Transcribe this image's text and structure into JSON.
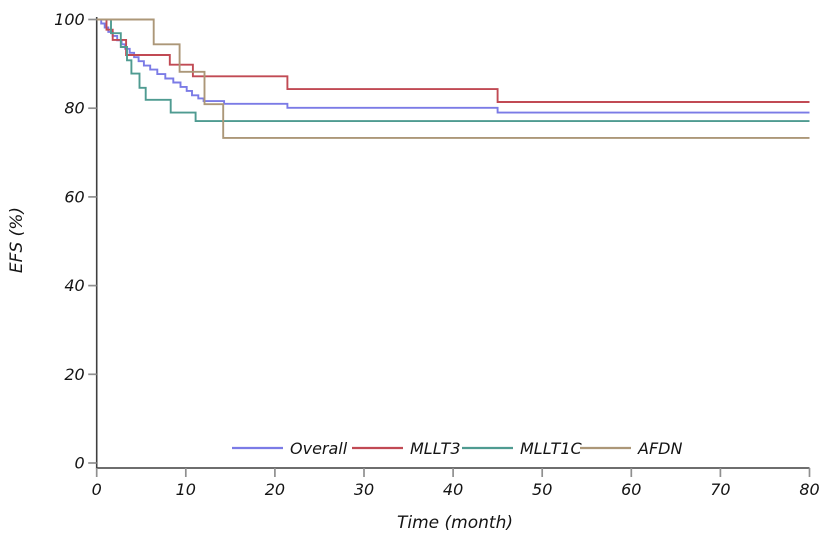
{
  "chart_data": {
    "type": "line",
    "subtype": "kaplan-meier-step",
    "title": "",
    "xlabel": "Time (month)",
    "ylabel": "EFS (%)",
    "xlim": [
      0,
      80
    ],
    "ylim": [
      0,
      100
    ],
    "xticks": [
      0,
      10,
      20,
      30,
      40,
      50,
      60,
      70,
      80
    ],
    "yticks": [
      0,
      20,
      40,
      60,
      80,
      100
    ],
    "grid": false,
    "legend_position": "inside-bottom-center",
    "axis_color": "#3f3f3f",
    "tick_color": "#8f8f8f",
    "text_color": "#141414",
    "background_color": "#ffffff",
    "series": [
      {
        "name": "Overall",
        "color": "#7b7be6",
        "points": [
          [
            0,
            100
          ],
          [
            0.5,
            99.1
          ],
          [
            0.9,
            98.2
          ],
          [
            1.3,
            97.2
          ],
          [
            1.8,
            96.3
          ],
          [
            2.3,
            95.3
          ],
          [
            2.8,
            94.4
          ],
          [
            3.2,
            93.4
          ],
          [
            3.7,
            92.5
          ],
          [
            4.2,
            91.5
          ],
          [
            4.7,
            90.6
          ],
          [
            5.3,
            89.6
          ],
          [
            6.0,
            88.7
          ],
          [
            6.8,
            87.7
          ],
          [
            7.7,
            86.7
          ],
          [
            8.6,
            85.8
          ],
          [
            9.4,
            84.8
          ],
          [
            10.1,
            83.9
          ],
          [
            10.7,
            82.9
          ],
          [
            11.4,
            82.2
          ],
          [
            12.0,
            81.6
          ],
          [
            14.3,
            81.0
          ],
          [
            21.4,
            80.1
          ],
          [
            45.0,
            79.0
          ]
        ]
      },
      {
        "name": "MLLT3",
        "color": "#c14a54",
        "points": [
          [
            0,
            100
          ],
          [
            1.1,
            97.7
          ],
          [
            1.8,
            95.4
          ],
          [
            3.3,
            92.0
          ],
          [
            8.2,
            89.8
          ],
          [
            10.8,
            87.2
          ],
          [
            21.4,
            84.3
          ],
          [
            45.0,
            81.4
          ]
        ]
      },
      {
        "name": "MLLT1C",
        "color": "#4f9b91",
        "points": [
          [
            0,
            100
          ],
          [
            1.6,
            96.9
          ],
          [
            2.7,
            93.8
          ],
          [
            3.4,
            90.8
          ],
          [
            3.9,
            87.8
          ],
          [
            4.8,
            84.6
          ],
          [
            5.5,
            81.9
          ],
          [
            8.3,
            79.0
          ],
          [
            11.1,
            77.1
          ]
        ]
      },
      {
        "name": "AFDN",
        "color": "#ac9778",
        "points": [
          [
            0,
            100
          ],
          [
            6.4,
            94.4
          ],
          [
            9.3,
            88.2
          ],
          [
            12.1,
            80.9
          ],
          [
            14.2,
            73.3
          ]
        ]
      }
    ]
  }
}
